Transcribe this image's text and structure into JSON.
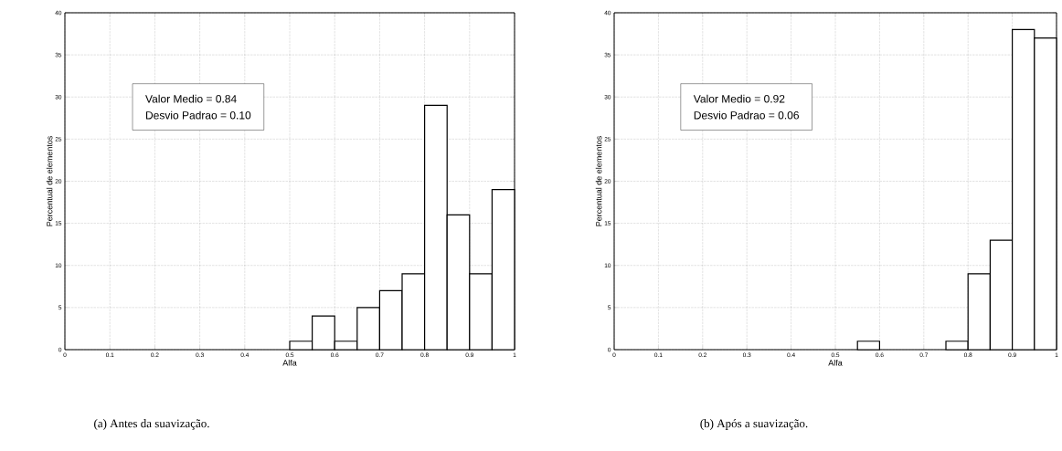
{
  "chart_data": [
    {
      "type": "histogram",
      "title": "(a) Antes da suavização.",
      "xlabel": "Alfa",
      "ylabel": "Percentual de elementos",
      "bins": [
        0.5,
        0.55,
        0.6,
        0.65,
        0.7,
        0.75,
        0.8,
        0.85,
        0.9,
        0.95,
        1.0
      ],
      "values": [
        1,
        4,
        1,
        5,
        7,
        9,
        29,
        16,
        9,
        19
      ],
      "color": "#ffffff",
      "xlim": [
        0,
        1
      ],
      "xticks": [
        0,
        0.1,
        0.2,
        0.3,
        0.4,
        0.5,
        0.6,
        0.7,
        0.8,
        0.9,
        1
      ],
      "ylim": [
        0,
        40
      ],
      "yticks": [
        0,
        5,
        10,
        15,
        20,
        25,
        30,
        35,
        40
      ],
      "grid": true,
      "annotations": [
        "Valor Medio = 0.84",
        "Desvio Padrao = 0.10"
      ]
    },
    {
      "type": "histogram",
      "title": "(b) Após a suavização.",
      "xlabel": "Alfa",
      "ylabel": "Percentual de elementos",
      "bins": [
        0.55,
        0.6,
        0.65,
        0.7,
        0.75,
        0.8,
        0.85,
        0.9,
        0.95,
        1.0
      ],
      "values": [
        1,
        0,
        0,
        0,
        1,
        9,
        13,
        38,
        37
      ],
      "color": "#ffffff",
      "xlim": [
        0,
        1
      ],
      "xticks": [
        0,
        0.1,
        0.2,
        0.3,
        0.4,
        0.5,
        0.6,
        0.7,
        0.8,
        0.9,
        1
      ],
      "ylim": [
        0,
        40
      ],
      "yticks": [
        0,
        5,
        10,
        15,
        20,
        25,
        30,
        35,
        40
      ],
      "grid": true,
      "annotations": [
        "Valor Medio = 0.92",
        "Desvio Padrao = 0.06"
      ]
    }
  ]
}
